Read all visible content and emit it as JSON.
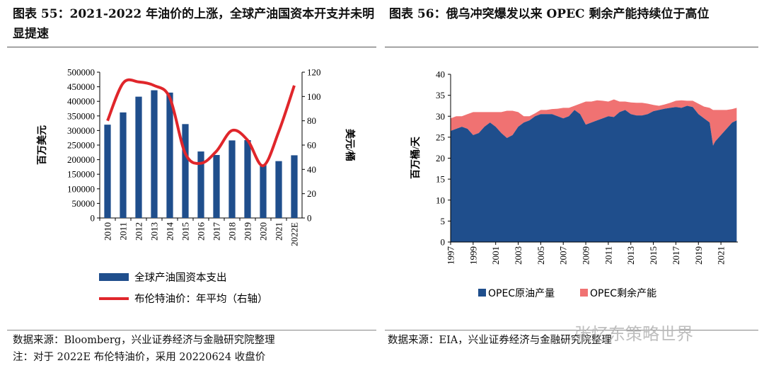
{
  "panel_left": {
    "title": "图表 55：2021-2022 年油价的上涨，全球产油国资本开支并未明显提速",
    "source": "数据来源：Bloomberg，兴业证券经济与金融研究院整理",
    "note": "注：对于 2022E 布伦特油价，采用 20220624 收盘价"
  },
  "panel_right": {
    "title": "图表 56：俄乌冲突爆发以来 OPEC 剩余产能持续位于高位",
    "source": "数据来源：EIA，兴业证券经济与金融研究院整理"
  },
  "watermark": "张忆东策略世界",
  "colors": {
    "bar": "#1f4e8c",
    "line": "#e0262b",
    "opec_prod": "#1f4e8c",
    "opec_spare": "#f07272"
  },
  "chart_data": [
    {
      "type": "bar",
      "categories": [
        "2010",
        "2011",
        "2012",
        "2013",
        "2014",
        "2015",
        "2016",
        "2017",
        "2018",
        "2019",
        "2020",
        "2021",
        "2022E"
      ],
      "series": [
        {
          "name": "全球产油国资本支出",
          "axis": "left",
          "kind": "bar",
          "values": [
            320000,
            362000,
            416000,
            438000,
            430000,
            322000,
            228000,
            216000,
            266000,
            267000,
            183000,
            195000,
            215000
          ]
        },
        {
          "name": "布伦特油价：年平均（右轴）",
          "axis": "right",
          "kind": "line",
          "values": [
            80,
            111,
            112,
            109,
            99,
            53,
            45,
            55,
            72,
            64,
            43,
            71,
            109
          ]
        }
      ],
      "ylabel": "百万美元",
      "y2label": "美元/桶",
      "ylim": [
        0,
        500000
      ],
      "y2lim": [
        0,
        120
      ],
      "yticks": [
        "0",
        "50000",
        "100000",
        "150000",
        "200000",
        "250000",
        "300000",
        "350000",
        "400000",
        "450000",
        "500000"
      ],
      "y2ticks": [
        "0",
        "20",
        "40",
        "60",
        "80",
        "100",
        "120"
      ],
      "legend": [
        "全球产油国资本支出",
        "布伦特油价：年平均（右轴）"
      ]
    },
    {
      "type": "area",
      "stacked": true,
      "ylabel": "百万桶/天",
      "ylim": [
        0,
        40
      ],
      "yticks": [
        "0",
        "5",
        "10",
        "15",
        "20",
        "25",
        "30",
        "35",
        "40"
      ],
      "xticks": [
        "1997",
        "1999",
        "2001",
        "2003",
        "2005",
        "2007",
        "2009",
        "2011",
        "2013",
        "2015",
        "2017",
        "2019",
        "2021"
      ],
      "xlim": [
        1997,
        2022.5
      ],
      "x": [
        1997,
        1997.5,
        1998,
        1998.5,
        1999,
        1999.5,
        2000,
        2000.5,
        2001,
        2001.5,
        2002,
        2002.5,
        2003,
        2003.5,
        2004,
        2004.5,
        2005,
        2005.5,
        2006,
        2006.5,
        2007,
        2007.5,
        2008,
        2008.5,
        2009,
        2009.5,
        2010,
        2010.5,
        2011,
        2011.5,
        2012,
        2012.5,
        2013,
        2013.5,
        2014,
        2014.5,
        2015,
        2015.5,
        2016,
        2016.5,
        2017,
        2017.5,
        2018,
        2018.5,
        2019,
        2019.5,
        2020,
        2020.3,
        2020.5,
        2021,
        2021.5,
        2022,
        2022.4
      ],
      "series": [
        {
          "name": "OPEC原油产量",
          "values": [
            26.5,
            27,
            27.5,
            27,
            25.5,
            26,
            27.5,
            28.5,
            27.5,
            26,
            24.8,
            25.5,
            27.5,
            28.5,
            29,
            30,
            30.5,
            30.5,
            30.5,
            30,
            29.5,
            30,
            31.5,
            30.5,
            28,
            28.5,
            29,
            29.5,
            30,
            29.8,
            31,
            31.5,
            30.5,
            30.2,
            30.2,
            30.5,
            31.2,
            31.5,
            31.8,
            32,
            32.2,
            32,
            32.5,
            32.2,
            30.5,
            29.5,
            28.5,
            23,
            24,
            25.5,
            27,
            28.5,
            29
          ]
        },
        {
          "name": "OPEC剩余产能",
          "values": [
            3,
            3,
            2.5,
            3.5,
            5.5,
            5,
            3.5,
            2.5,
            3.5,
            5,
            6.5,
            5.8,
            3.5,
            1.5,
            1,
            0.7,
            1,
            1,
            1.2,
            1.8,
            2.5,
            2,
            1,
            2.5,
            5.5,
            5,
            4.8,
            4.2,
            3.5,
            4.2,
            2.5,
            2,
            2.8,
            3,
            3,
            2.5,
            1.5,
            1,
            1,
            1.2,
            1.5,
            1.8,
            1.2,
            1.5,
            2.5,
            2.8,
            3.5,
            8.5,
            7.5,
            6,
            4.5,
            3.2,
            3
          ]
        }
      ],
      "legend": [
        "OPEC原油产量",
        "OPEC剩余产能"
      ]
    }
  ]
}
